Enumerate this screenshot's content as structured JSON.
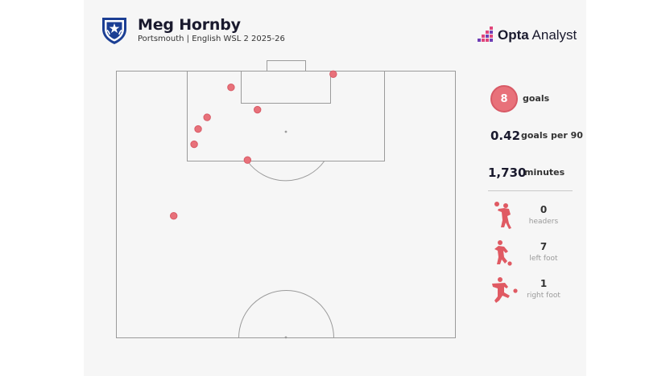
{
  "header": {
    "player_name": "Meg Hornby",
    "subtitle": "Portsmouth | English WSL 2 2025-26",
    "brand_bold": "Opta",
    "brand_regular": " Analyst"
  },
  "stats": {
    "goals_value": "8",
    "goals_label": "goals",
    "per90_value": "0.42",
    "per90_label": "goals per 90",
    "minutes_value": "1,730",
    "minutes_label": "minutes"
  },
  "body_parts": [
    {
      "value": "0",
      "label": "headers",
      "icon": "header-player-icon"
    },
    {
      "value": "7",
      "label": "left foot",
      "icon": "left-foot-player-icon"
    },
    {
      "value": "1",
      "label": "right foot",
      "icon": "right-foot-player-icon"
    }
  ],
  "colors": {
    "goal_marker": "#e8717a",
    "goal_marker_stroke": "#d85a66",
    "pitch_line": "#9b9b9b",
    "brand_text": "#1a1a2e"
  },
  "chart_data": {
    "type": "scatter",
    "title": "",
    "xlabel": "",
    "ylabel": "",
    "xlim": [
      0,
      68
    ],
    "ylim": [
      0,
      52.5
    ],
    "note_axes": "x = metres across pitch width from left touchline, y = metres from attacking goal line",
    "series": [
      {
        "points": [
          {
            "x": 23.0,
            "y": 3.2
          },
          {
            "x": 28.3,
            "y": 7.6
          },
          {
            "x": 18.2,
            "y": 9.1
          },
          {
            "x": 16.4,
            "y": 11.4
          },
          {
            "x": 15.6,
            "y": 14.4
          },
          {
            "x": 26.3,
            "y": 17.5
          },
          {
            "x": 11.5,
            "y": 28.5
          },
          {
            "x": 43.5,
            "y": 0.6
          }
        ]
      }
    ]
  }
}
